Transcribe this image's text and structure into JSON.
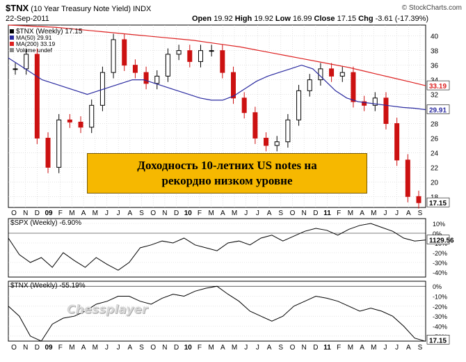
{
  "header": {
    "symbol": "$TNX",
    "description": "(10 Year Treasury Note Yield)",
    "exchange": "INDX",
    "date": "22-Sep-2011",
    "open_label": "Open",
    "open": "19.92",
    "high_label": "High",
    "high": "19.92",
    "low_label": "Low",
    "low": "16.99",
    "close_label": "Close",
    "close": "17.15",
    "chg_label": "Chg",
    "chg": "-3.61 (-17.39%)",
    "source": "© StockCharts.com"
  },
  "legend": {
    "main": "$TNX (Weekly) 17.15",
    "ma50": "MA(50) 29.91",
    "ma200": "MA(200) 33.19",
    "volume": "Volume undef"
  },
  "callout": {
    "line1": "Доходность 10-летних US notes на",
    "line2": "рекордно низком уровне"
  },
  "watermark": "Chessplayer",
  "colors": {
    "ma50": "#2a2aa0",
    "ma200": "#dd2020",
    "up": "#000000",
    "down": "#cc1111",
    "price_tag": "#000000"
  },
  "chart_data": [
    {
      "type": "candlestick",
      "series_name": "$TNX (Weekly)",
      "x_ticks": [
        "O",
        "N",
        "D",
        "09",
        "F",
        "M",
        "A",
        "M",
        "J",
        "J",
        "A",
        "S",
        "O",
        "N",
        "D",
        "10",
        "F",
        "M",
        "A",
        "M",
        "J",
        "J",
        "A",
        "S",
        "O",
        "N",
        "D",
        "11",
        "F",
        "M",
        "A",
        "M",
        "J",
        "J",
        "A",
        "S"
      ],
      "y_ticks": [
        18,
        20,
        22,
        24,
        26,
        28,
        30,
        32,
        34,
        36,
        38,
        40
      ],
      "ylim": [
        16.5,
        41.5
      ],
      "last_value": 17.15,
      "close": [
        35.5,
        37.5,
        26.0,
        22.0,
        28.5,
        28.2,
        27.5,
        30.5,
        35.0,
        39.5,
        36.0,
        35.0,
        33.5,
        34.5,
        37.5,
        38.0,
        36.5,
        38.0,
        38.0,
        35.0,
        31.5,
        29.5,
        26.0,
        25.0,
        25.5,
        28.5,
        32.5,
        34.0,
        35.5,
        34.5,
        35.0,
        31.0,
        30.5,
        31.5,
        28.0,
        23.0,
        18.0,
        17.15
      ],
      "ma50": [
        37.0,
        36.0,
        35.0,
        34.0,
        33.5,
        33.0,
        32.5,
        32.0,
        32.5,
        33.0,
        33.5,
        34.0,
        34.0,
        33.5,
        33.0,
        32.5,
        32.0,
        31.5,
        31.2,
        31.2,
        31.8,
        32.8,
        33.8,
        34.5,
        35.0,
        35.5,
        36.0,
        35.5,
        34.0,
        32.5,
        31.5,
        31.0,
        30.8,
        30.6,
        30.4,
        30.2,
        30.1,
        29.91
      ],
      "ma200": [
        41.5,
        41.4,
        41.3,
        41.2,
        41.0,
        40.8,
        40.6,
        40.4,
        40.2,
        40.0,
        39.8,
        39.6,
        39.4,
        39.1,
        38.8,
        38.5,
        38.1,
        37.7,
        37.3,
        36.9,
        36.5,
        36.1,
        35.7,
        35.2,
        34.7,
        34.2,
        33.7,
        33.19
      ],
      "ma50_last": 29.91,
      "ma200_last": 33.19
    },
    {
      "type": "line",
      "series_name": "$SPX (Weekly) -6.90%",
      "y_ticks": [
        "10%",
        "0%",
        "-10%",
        "-20%",
        "-30%",
        "-40%"
      ],
      "ylim": [
        -45,
        15
      ],
      "last_value": "1129.56",
      "values": [
        -5,
        -22,
        -30,
        -25,
        -35,
        -20,
        -28,
        -35,
        -25,
        -32,
        -38,
        -30,
        -15,
        -12,
        -8,
        -10,
        -5,
        -12,
        -15,
        -18,
        -10,
        -8,
        -12,
        -5,
        -2,
        -8,
        -3,
        2,
        5,
        3,
        -2,
        4,
        8,
        10,
        6,
        2,
        -5,
        -8,
        -6.9
      ]
    },
    {
      "type": "line",
      "series_name": "$TNX (Weekly) -55.19%",
      "y_ticks": [
        "0%",
        "-10%",
        "-20%",
        "-30%",
        "-40%",
        "-50%"
      ],
      "ylim": [
        -55,
        5
      ],
      "last_value": "17.15",
      "values": [
        -20,
        -30,
        -50,
        -55,
        -38,
        -32,
        -30,
        -25,
        -18,
        -15,
        -10,
        -10,
        -15,
        -18,
        -12,
        -8,
        -10,
        -5,
        -2,
        0,
        -8,
        -15,
        -25,
        -30,
        -35,
        -30,
        -20,
        -15,
        -10,
        -12,
        -15,
        -20,
        -25,
        -22,
        -25,
        -30,
        -40,
        -52,
        -55.19
      ]
    }
  ]
}
